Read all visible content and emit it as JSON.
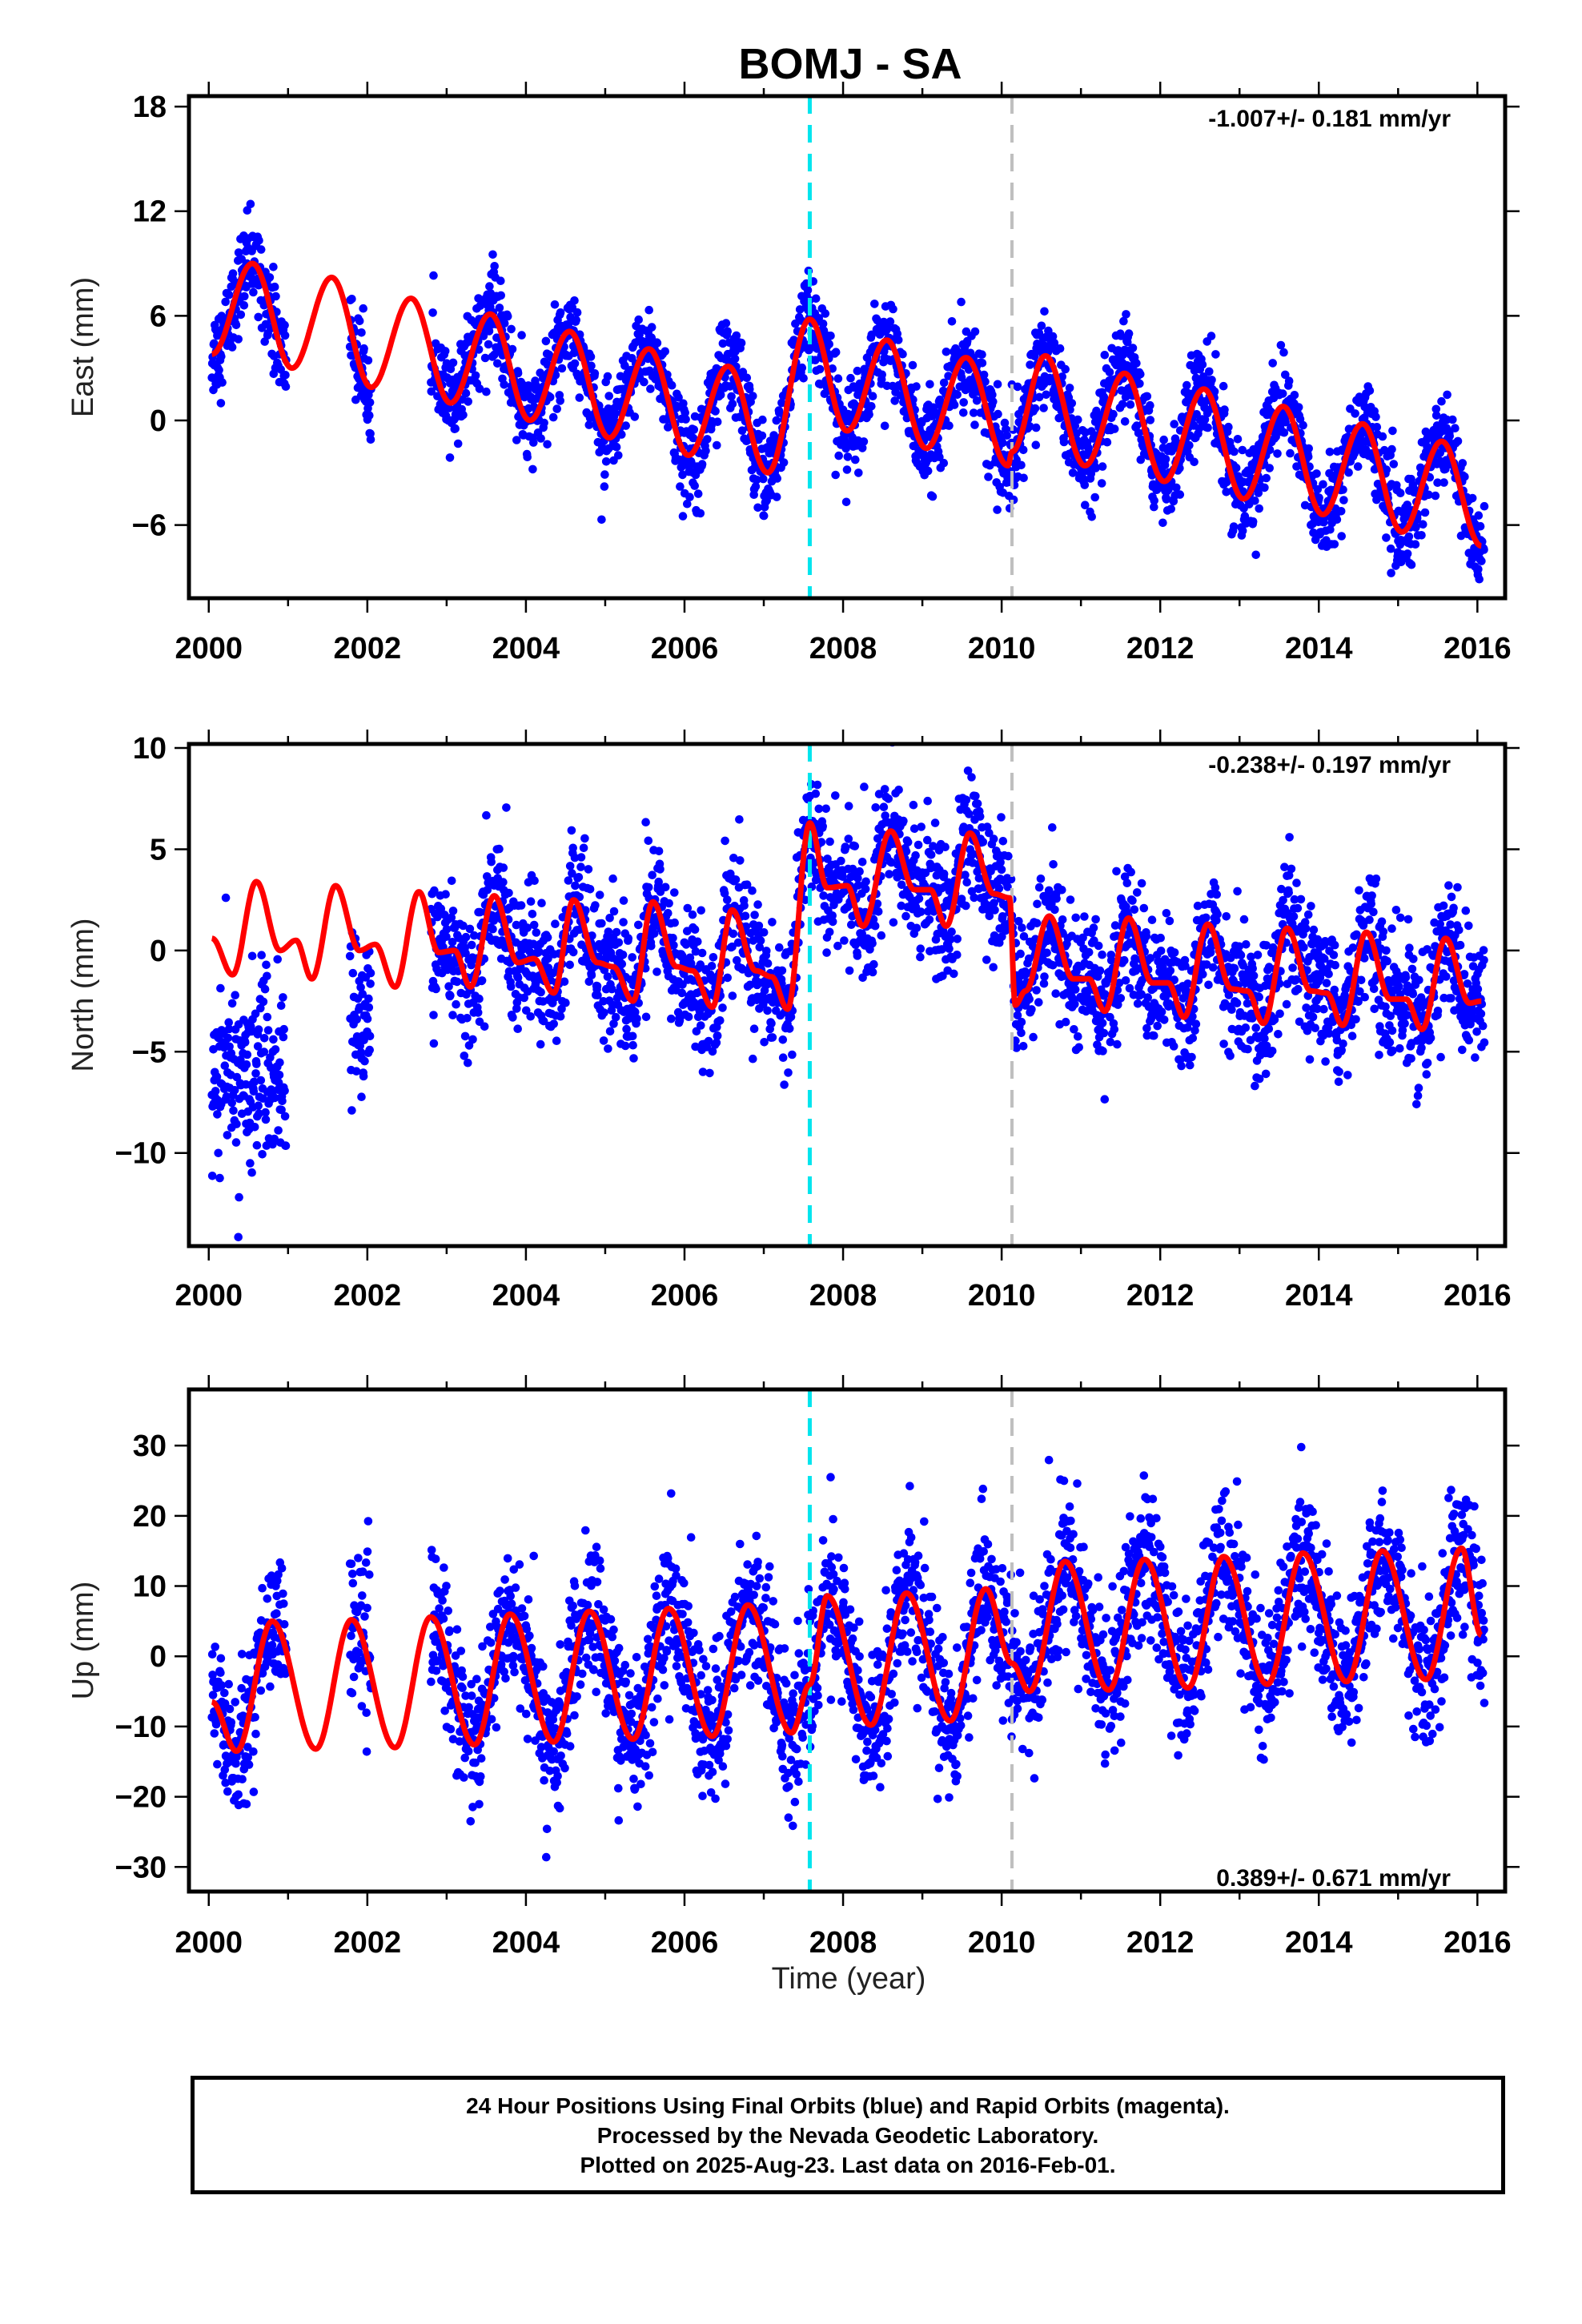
{
  "title": "BOMJ - SA",
  "xlabel": "Time (year)",
  "colors": {
    "final_orbits": "#0000ff",
    "model_fit": "#ff0000",
    "event_dashed_1": "#00e5ee",
    "event_dashed_2": "#bfbfbf"
  },
  "footer": {
    "line1": "24 Hour Positions Using Final Orbits (blue) and Rapid Orbits (magenta).",
    "line2": "Processed by the Nevada Geodetic Laboratory.",
    "line3": "Plotted on 2025-Aug-23. Last data on 2016-Feb-01."
  },
  "chart_data": [
    {
      "type": "scatter",
      "name": "east",
      "ylabel": "East (mm)",
      "annotation": "-1.007+/- 0.181 mm/yr",
      "xlim": [
        1999.75,
        2016.35
      ],
      "ylim": [
        -10.2,
        18.6
      ],
      "xticks": [
        2000,
        2002,
        2004,
        2006,
        2008,
        2010,
        2012,
        2014,
        2016
      ],
      "yticks": [
        -6,
        0,
        6,
        12,
        18
      ],
      "vlines": [
        2007.58,
        2010.13
      ],
      "series": [
        {
          "values": {
            "data_start": 2000.04,
            "gap": [
              2001.0,
              2002.8
            ],
            "sparse_2002": [
              2001.8,
              2002.05
            ],
            "seasonal_amp": 2.9,
            "phase_peak": 0.55,
            "trend_mm_per_yr": -0.72,
            "offset_2007_58": 4.0,
            "scatter_sd": 1.3
          },
          "model_knots": [
            [
              2000.04,
              3.8
            ],
            [
              2000.55,
              9.0
            ],
            [
              2001.05,
              3.0
            ],
            [
              2001.55,
              8.2
            ],
            [
              2002.05,
              1.9
            ],
            [
              2002.55,
              7.0
            ],
            [
              2003.05,
              1.0
            ],
            [
              2003.55,
              6.1
            ],
            [
              2004.05,
              0.0
            ],
            [
              2004.55,
              5.1
            ],
            [
              2005.05,
              -1.0
            ],
            [
              2005.55,
              4.1
            ],
            [
              2006.05,
              -2.0
            ],
            [
              2006.55,
              3.1
            ],
            [
              2007.05,
              -3.0
            ],
            [
              2007.58,
              5.8
            ],
            [
              2008.05,
              -0.6
            ],
            [
              2008.55,
              4.6
            ],
            [
              2009.05,
              -1.6
            ],
            [
              2009.55,
              3.6
            ],
            [
              2010.08,
              -2.6
            ],
            [
              2010.13,
              -1.8
            ],
            [
              2010.55,
              3.7
            ],
            [
              2011.05,
              -2.6
            ],
            [
              2011.55,
              2.7
            ],
            [
              2012.05,
              -3.5
            ],
            [
              2012.55,
              1.8
            ],
            [
              2013.05,
              -4.5
            ],
            [
              2013.55,
              0.8
            ],
            [
              2014.05,
              -5.4
            ],
            [
              2014.55,
              -0.2
            ],
            [
              2015.05,
              -6.4
            ],
            [
              2015.55,
              -1.2
            ],
            [
              2016.05,
              -7.2
            ]
          ]
        }
      ]
    },
    {
      "type": "scatter",
      "name": "north",
      "ylabel": "North (mm)",
      "annotation": "-0.238+/- 0.197 mm/yr",
      "xlim": [
        1999.75,
        2016.35
      ],
      "ylim": [
        -14.6,
        10.2
      ],
      "xticks": [
        2000,
        2002,
        2004,
        2006,
        2008,
        2010,
        2012,
        2014,
        2016
      ],
      "yticks": [
        -10,
        -5,
        0,
        5,
        10
      ],
      "vlines": [
        2007.58,
        2010.13
      ],
      "series": [
        {
          "values": {
            "data_start": 2000.04,
            "early_cluster_mean": -6.0,
            "seasonal_amp": 2.1,
            "scatter_sd": 1.6
          },
          "model_knots": [
            [
              2000.04,
              0.6
            ],
            [
              2000.3,
              -1.2
            ],
            [
              2000.6,
              3.4
            ],
            [
              2000.9,
              0.0
            ],
            [
              2001.1,
              0.5
            ],
            [
              2001.3,
              -1.4
            ],
            [
              2001.6,
              3.2
            ],
            [
              2001.9,
              0.0
            ],
            [
              2002.1,
              0.3
            ],
            [
              2002.35,
              -1.8
            ],
            [
              2002.65,
              2.9
            ],
            [
              2002.9,
              -0.1
            ],
            [
              2003.1,
              0.0
            ],
            [
              2003.3,
              -1.8
            ],
            [
              2003.6,
              2.7
            ],
            [
              2003.9,
              -0.6
            ],
            [
              2004.1,
              -0.4
            ],
            [
              2004.35,
              -2.1
            ],
            [
              2004.6,
              2.5
            ],
            [
              2004.9,
              -0.6
            ],
            [
              2005.1,
              -0.8
            ],
            [
              2005.35,
              -2.5
            ],
            [
              2005.6,
              2.4
            ],
            [
              2005.9,
              -0.8
            ],
            [
              2006.1,
              -1.0
            ],
            [
              2006.35,
              -2.8
            ],
            [
              2006.6,
              2.0
            ],
            [
              2006.9,
              -1.0
            ],
            [
              2007.1,
              -1.3
            ],
            [
              2007.3,
              -2.9
            ],
            [
              2007.58,
              6.3
            ],
            [
              2007.8,
              3.1
            ],
            [
              2008.05,
              3.2
            ],
            [
              2008.25,
              1.2
            ],
            [
              2008.6,
              5.9
            ],
            [
              2008.9,
              3.0
            ],
            [
              2009.1,
              3.0
            ],
            [
              2009.3,
              1.2
            ],
            [
              2009.6,
              5.8
            ],
            [
              2009.9,
              2.8
            ],
            [
              2010.1,
              2.6
            ],
            [
              2010.17,
              -2.7
            ],
            [
              2010.3,
              -2.0
            ],
            [
              2010.6,
              1.7
            ],
            [
              2010.9,
              -1.4
            ],
            [
              2011.1,
              -1.4
            ],
            [
              2011.3,
              -3.0
            ],
            [
              2011.6,
              1.6
            ],
            [
              2011.9,
              -1.6
            ],
            [
              2012.1,
              -1.6
            ],
            [
              2012.3,
              -3.3
            ],
            [
              2012.6,
              1.3
            ],
            [
              2012.9,
              -1.9
            ],
            [
              2013.1,
              -2.0
            ],
            [
              2013.3,
              -3.6
            ],
            [
              2013.6,
              1.1
            ],
            [
              2013.9,
              -2.0
            ],
            [
              2014.1,
              -2.1
            ],
            [
              2014.3,
              -3.7
            ],
            [
              2014.6,
              0.9
            ],
            [
              2014.9,
              -2.4
            ],
            [
              2015.1,
              -2.4
            ],
            [
              2015.3,
              -3.9
            ],
            [
              2015.6,
              0.6
            ],
            [
              2015.9,
              -2.6
            ],
            [
              2016.05,
              -2.5
            ]
          ]
        }
      ]
    },
    {
      "type": "scatter",
      "name": "up",
      "ylabel": "Up (mm)",
      "annotation": "0.389+/- 0.671 mm/yr",
      "xlim": [
        1999.75,
        2016.35
      ],
      "ylim": [
        -33.5,
        38
      ],
      "xticks": [
        2000,
        2002,
        2004,
        2006,
        2008,
        2010,
        2012,
        2014,
        2016
      ],
      "yticks": [
        -30,
        -20,
        -10,
        0,
        10,
        20,
        30
      ],
      "vlines": [
        2007.58,
        2010.13
      ],
      "series": [
        {
          "values": {
            "data_start": 2000.04,
            "seasonal_amp": 9.5,
            "phase_peak": 0.8,
            "scatter_sd": 5.2
          },
          "model_knots": [
            [
              2000.04,
              -6.5
            ],
            [
              2000.35,
              -13.5
            ],
            [
              2000.8,
              5.0
            ],
            [
              2001.35,
              -13.2
            ],
            [
              2001.8,
              5.2
            ],
            [
              2002.35,
              -13.0
            ],
            [
              2002.8,
              5.6
            ],
            [
              2003.35,
              -12.6
            ],
            [
              2003.8,
              6.0
            ],
            [
              2004.35,
              -12.2
            ],
            [
              2004.8,
              6.4
            ],
            [
              2005.35,
              -11.8
            ],
            [
              2005.8,
              6.8
            ],
            [
              2006.35,
              -11.4
            ],
            [
              2006.8,
              7.3
            ],
            [
              2007.35,
              -10.9
            ],
            [
              2007.58,
              -4.0
            ],
            [
              2007.8,
              8.6
            ],
            [
              2008.35,
              -9.8
            ],
            [
              2008.8,
              9.0
            ],
            [
              2009.35,
              -9.2
            ],
            [
              2009.8,
              9.6
            ],
            [
              2010.13,
              -1.0
            ],
            [
              2010.35,
              -5.0
            ],
            [
              2010.8,
              13.5
            ],
            [
              2011.35,
              -4.8
            ],
            [
              2011.8,
              13.8
            ],
            [
              2012.35,
              -4.5
            ],
            [
              2012.8,
              14.2
            ],
            [
              2013.35,
              -4.0
            ],
            [
              2013.8,
              14.7
            ],
            [
              2014.35,
              -3.6
            ],
            [
              2014.8,
              15.0
            ],
            [
              2015.35,
              -3.3
            ],
            [
              2015.8,
              15.4
            ],
            [
              2016.05,
              3.0
            ]
          ]
        }
      ]
    }
  ]
}
